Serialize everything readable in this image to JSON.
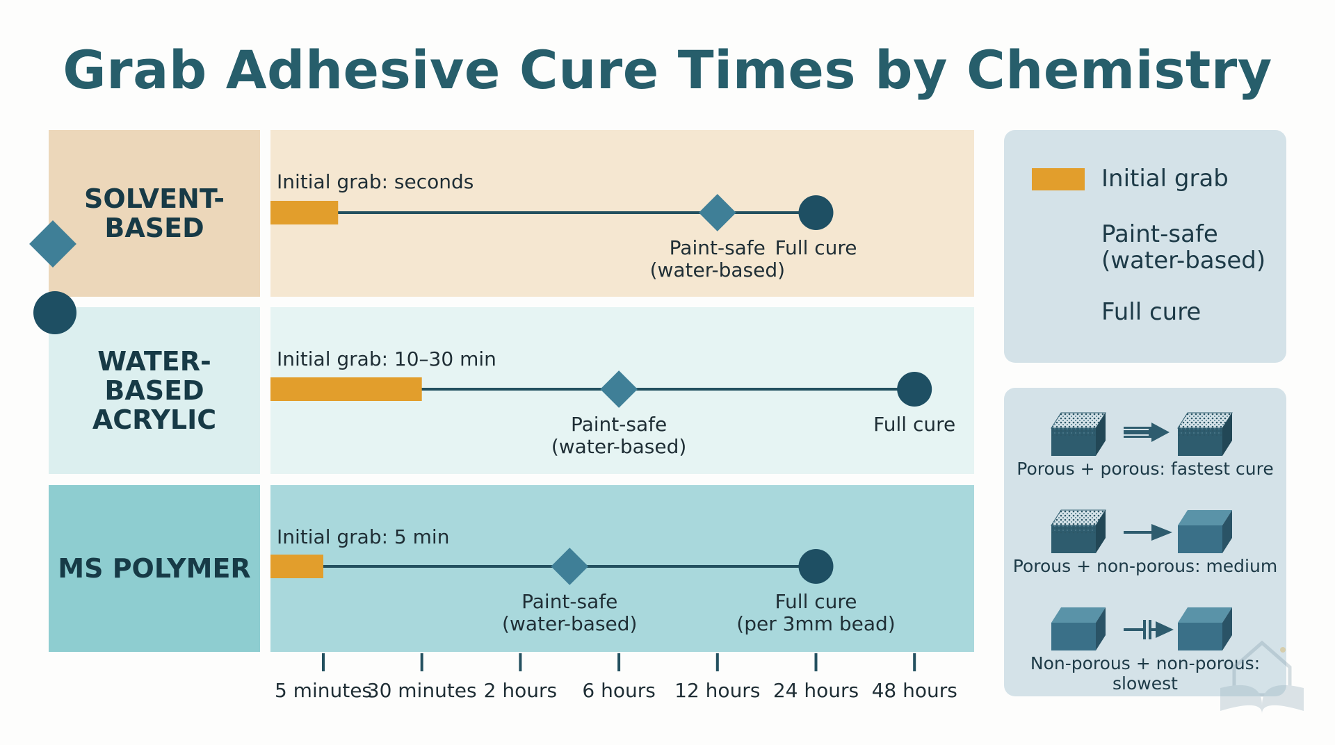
{
  "title": "Grab Adhesive Cure Times by Chemistry",
  "colors": {
    "initial_grab": "#e29e2c",
    "paint_safe": "#3f7f97",
    "full_cure": "#1e4f63",
    "timeline": "#23505f"
  },
  "chart_data": {
    "type": "timeline",
    "title": "Grab Adhesive Cure Times by Chemistry",
    "x_axis": {
      "scale": "ordinal-log",
      "ticks": [
        "5 minutes",
        "30 minutes",
        "2 hours",
        "6 hours",
        "12 hours",
        "24 hours",
        "48 hours"
      ]
    },
    "rows": [
      {
        "name": "SOLVENT-BASED",
        "initial_grab_label": "Initial grab: seconds",
        "initial_grab_end_tick": 0.15,
        "paint_safe_tick": 4.0,
        "full_cure_tick": 5.0,
        "paint_safe_label": [
          "Paint-safe",
          "(water-based)"
        ],
        "full_cure_label": [
          "Full cure"
        ]
      },
      {
        "name": "WATER-BASED ACRYLIC",
        "initial_grab_label": "Initial grab: 10–30 min",
        "initial_grab_end_tick": 1.0,
        "paint_safe_tick": 3.0,
        "full_cure_tick": 6.0,
        "paint_safe_label": [
          "Paint-safe",
          "(water-based)"
        ],
        "full_cure_label": [
          "Full cure"
        ]
      },
      {
        "name": "MS POLYMER",
        "initial_grab_label": "Initial grab: 5 min",
        "initial_grab_end_tick": 0.0,
        "paint_safe_tick": 2.5,
        "full_cure_tick": 5.0,
        "paint_safe_label": [
          "Paint-safe",
          "(water-based)"
        ],
        "full_cure_label": [
          "Full cure",
          "(per 3mm bead)"
        ]
      }
    ]
  },
  "rows": {
    "solvent": "SOLVENT-BASED",
    "water": "WATER-BASED ACRYLIC",
    "ms": "MS POLYMER"
  },
  "legend": {
    "initial_grab": "Initial grab",
    "paint_safe_1": "Paint-safe",
    "paint_safe_2": "(water-based)",
    "full_cure": "Full cure"
  },
  "surfaces": {
    "porous_porous": "Porous + porous: fastest cure",
    "porous_nonporous": "Porous + non-porous: medium",
    "nonporous_nonporous": "Non-porous + non-porous: slowest"
  },
  "icons": {
    "porous_block": "porous-block-icon",
    "nonporous_block": "nonporous-block-icon",
    "fast_arrow": "fast-arrow-icon",
    "medium_arrow": "medium-arrow-icon",
    "blocked_arrow": "blocked-arrow-icon",
    "watermark": "book-house-watermark-icon"
  }
}
